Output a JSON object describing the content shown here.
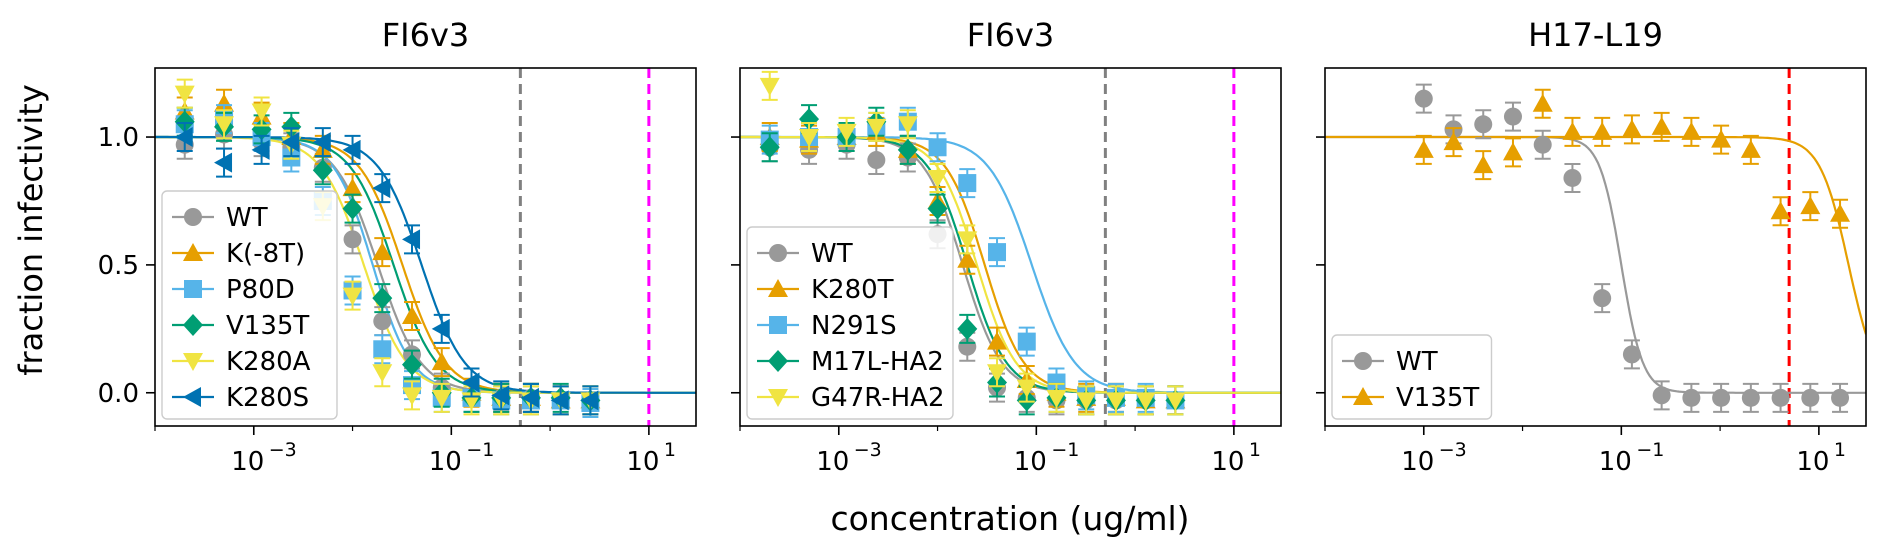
{
  "figure": {
    "ylabel": "fraction infectivity",
    "xlabel": "concentration (ug/ml)"
  },
  "chart_data": [
    {
      "type": "line",
      "title": "FI6v3",
      "xscale": "log",
      "xlim": [
        0.0001,
        30
      ],
      "ylim": [
        -0.13,
        1.27
      ],
      "xticks": [
        {
          "value": 0.001,
          "base": "10",
          "exp": "−3"
        },
        {
          "value": 0.1,
          "base": "10",
          "exp": "−1"
        },
        {
          "value": 10,
          "base": "10",
          "exp": "1"
        }
      ],
      "yticks": [
        {
          "value": 0,
          "label": "0.0"
        },
        {
          "value": 0.5,
          "label": "0.5"
        },
        {
          "value": 1,
          "label": "1.0"
        }
      ],
      "vlines": [
        {
          "x": 0.5,
          "color": "#808080"
        },
        {
          "x": 10,
          "color": "#ff00ff"
        }
      ],
      "legend": "lower-left",
      "series": [
        {
          "name": "WT",
          "color": "#999999",
          "marker": "circle",
          "ic50": 0.018,
          "hill": 2.0,
          "x": [
            0.0002,
            0.0005,
            0.0012,
            0.0024,
            0.005,
            0.01,
            0.02,
            0.04,
            0.08,
            0.16,
            0.32,
            0.64,
            1.28,
            2.56
          ],
          "y": [
            0.97,
            1.01,
            0.98,
            0.96,
            0.88,
            0.6,
            0.28,
            0.15,
            0.02,
            -0.02,
            -0.02,
            -0.02,
            -0.03,
            -0.03
          ]
        },
        {
          "name": "K(-8T)",
          "color": "#e69f00",
          "marker": "triangle-up",
          "ic50": 0.032,
          "hill": 2.0,
          "x": [
            0.0002,
            0.0005,
            0.0012,
            0.0024,
            0.005,
            0.01,
            0.02,
            0.04,
            0.08,
            0.16,
            0.32,
            0.64,
            1.28,
            2.56
          ],
          "y": [
            1.1,
            1.13,
            1.08,
            1.0,
            0.95,
            0.8,
            0.55,
            0.3,
            0.12,
            0.0,
            -0.02,
            -0.02,
            -0.03,
            -0.03
          ]
        },
        {
          "name": "P80D",
          "color": "#56b4e9",
          "marker": "square",
          "ic50": 0.016,
          "hill": 2.2,
          "x": [
            0.0002,
            0.0005,
            0.0012,
            0.0024,
            0.005,
            0.01,
            0.02,
            0.04,
            0.08,
            0.16,
            0.32,
            0.64,
            1.28,
            2.56
          ],
          "y": [
            1.05,
            1.07,
            1.0,
            0.92,
            0.75,
            0.4,
            0.17,
            0.03,
            -0.02,
            -0.02,
            -0.03,
            -0.03,
            -0.03,
            -0.04
          ]
        },
        {
          "name": "V135T",
          "color": "#009e73",
          "marker": "diamond",
          "ic50": 0.026,
          "hill": 2.0,
          "x": [
            0.0002,
            0.0005,
            0.0012,
            0.0024,
            0.005,
            0.01,
            0.02,
            0.04,
            0.08,
            0.16,
            0.32,
            0.64,
            1.28,
            2.56
          ],
          "y": [
            1.06,
            1.04,
            1.03,
            1.04,
            0.87,
            0.72,
            0.37,
            0.11,
            0.0,
            -0.02,
            -0.02,
            -0.02,
            -0.02,
            -0.03
          ]
        },
        {
          "name": "K280A",
          "color": "#f0e442",
          "marker": "triangle-down",
          "ic50": 0.013,
          "hill": 2.0,
          "x": [
            0.0002,
            0.0005,
            0.0012,
            0.0024,
            0.005,
            0.01,
            0.02,
            0.04,
            0.08,
            0.16,
            0.32,
            0.64,
            1.28,
            2.56
          ],
          "y": [
            1.17,
            1.05,
            1.1,
            0.97,
            0.73,
            0.38,
            0.08,
            -0.01,
            -0.02,
            -0.03,
            -0.03,
            -0.03,
            -0.03,
            -0.03
          ]
        },
        {
          "name": "K280S",
          "color": "#0072b2",
          "marker": "triangle-left",
          "ic50": 0.05,
          "hill": 2.0,
          "x": [
            0.0002,
            0.0005,
            0.0012,
            0.0024,
            0.005,
            0.01,
            0.02,
            0.04,
            0.08,
            0.16,
            0.32,
            0.64,
            1.28,
            2.56
          ],
          "y": [
            1.0,
            0.9,
            0.95,
            0.98,
            0.98,
            0.95,
            0.8,
            0.6,
            0.25,
            0.04,
            -0.01,
            -0.02,
            -0.03,
            -0.03
          ]
        }
      ]
    },
    {
      "type": "line",
      "title": "FI6v3",
      "xscale": "log",
      "xlim": [
        0.0001,
        30
      ],
      "ylim": [
        -0.13,
        1.27
      ],
      "xticks": [
        {
          "value": 0.001,
          "base": "10",
          "exp": "−3"
        },
        {
          "value": 0.1,
          "base": "10",
          "exp": "−1"
        },
        {
          "value": 10,
          "base": "10",
          "exp": "1"
        }
      ],
      "yticks": [
        {
          "value": 0,
          "label": ""
        },
        {
          "value": 0.5,
          "label": ""
        },
        {
          "value": 1,
          "label": ""
        }
      ],
      "vlines": [
        {
          "x": 0.5,
          "color": "#808080"
        },
        {
          "x": 10,
          "color": "#ff00ff"
        }
      ],
      "legend": "lower-left",
      "series": [
        {
          "name": "WT",
          "color": "#999999",
          "marker": "circle",
          "ic50": 0.018,
          "hill": 2.2,
          "x": [
            0.0002,
            0.0005,
            0.0012,
            0.0024,
            0.005,
            0.01,
            0.02,
            0.04,
            0.08,
            0.16,
            0.32,
            0.64,
            1.28,
            2.56
          ],
          "y": [
            0.96,
            0.95,
            0.97,
            0.91,
            0.92,
            0.62,
            0.18,
            0.02,
            -0.02,
            -0.03,
            -0.03,
            -0.03,
            -0.03,
            -0.03
          ]
        },
        {
          "name": "K280T",
          "color": "#e69f00",
          "marker": "triangle-up",
          "ic50": 0.03,
          "hill": 2.2,
          "x": [
            0.0002,
            0.0005,
            0.0012,
            0.0024,
            0.005,
            0.01,
            0.02,
            0.04,
            0.08,
            0.16,
            0.32,
            0.64,
            1.28,
            2.56
          ],
          "y": [
            1.0,
            0.99,
            1.0,
            1.02,
            0.95,
            0.75,
            0.52,
            0.2,
            0.05,
            0.0,
            -0.02,
            -0.02,
            -0.03,
            -0.03
          ]
        },
        {
          "name": "N291S",
          "color": "#56b4e9",
          "marker": "square",
          "ic50": 0.09,
          "hill": 2.0,
          "x": [
            0.0002,
            0.0005,
            0.0012,
            0.0024,
            0.005,
            0.01,
            0.02,
            0.04,
            0.08,
            0.16,
            0.32,
            0.64,
            1.28,
            2.56
          ],
          "y": [
            0.99,
            1.0,
            1.0,
            1.04,
            1.06,
            0.96,
            0.82,
            0.55,
            0.2,
            0.04,
            -0.01,
            -0.02,
            -0.02,
            -0.03
          ]
        },
        {
          "name": "M17L-HA2",
          "color": "#009e73",
          "marker": "diamond",
          "ic50": 0.02,
          "hill": 2.2,
          "x": [
            0.0002,
            0.0005,
            0.0012,
            0.0024,
            0.005,
            0.01,
            0.02,
            0.04,
            0.08,
            0.16,
            0.32,
            0.64,
            1.28,
            2.56
          ],
          "y": [
            0.96,
            1.07,
            1.0,
            1.06,
            0.95,
            0.72,
            0.25,
            0.04,
            -0.03,
            -0.02,
            -0.03,
            -0.03,
            -0.03,
            -0.03
          ]
        },
        {
          "name": "G47R-HA2",
          "color": "#f0e442",
          "marker": "triangle-down",
          "ic50": 0.025,
          "hill": 2.2,
          "x": [
            0.0002,
            0.0005,
            0.0012,
            0.0024,
            0.005,
            0.01,
            0.02,
            0.04,
            0.08,
            0.16,
            0.32,
            0.64,
            1.28,
            2.56
          ],
          "y": [
            1.2,
            1.0,
            1.02,
            1.04,
            1.05,
            0.84,
            0.6,
            0.08,
            0.02,
            -0.02,
            -0.03,
            -0.03,
            -0.03,
            -0.03
          ]
        }
      ]
    },
    {
      "type": "line",
      "title": "H17-L19",
      "xscale": "log",
      "xlim": [
        0.0001,
        30
      ],
      "ylim": [
        -0.13,
        1.27
      ],
      "xticks": [
        {
          "value": 0.001,
          "base": "10",
          "exp": "−3"
        },
        {
          "value": 0.1,
          "base": "10",
          "exp": "−1"
        },
        {
          "value": 10,
          "base": "10",
          "exp": "1"
        }
      ],
      "yticks": [
        {
          "value": 0,
          "label": ""
        },
        {
          "value": 0.5,
          "label": ""
        },
        {
          "value": 1,
          "label": ""
        }
      ],
      "vlines": [
        {
          "x": 5,
          "color": "#ff0000"
        }
      ],
      "legend": "lower-left",
      "series": [
        {
          "name": "WT",
          "color": "#999999",
          "marker": "circle",
          "ic50": 0.1,
          "hill": 4.0,
          "x": [
            0.001,
            0.002,
            0.004,
            0.008,
            0.016,
            0.032,
            0.064,
            0.128,
            0.256,
            0.512,
            1.024,
            2.048,
            4.096,
            8.192,
            16.38
          ],
          "y": [
            1.15,
            1.03,
            1.05,
            1.08,
            0.97,
            0.84,
            0.37,
            0.15,
            -0.01,
            -0.02,
            -0.02,
            -0.02,
            -0.02,
            -0.02,
            -0.02
          ]
        },
        {
          "name": "V135T",
          "color": "#e69f00",
          "marker": "triangle-up",
          "ic50": 20,
          "hill": 3.0,
          "x": [
            0.001,
            0.002,
            0.004,
            0.008,
            0.016,
            0.032,
            0.064,
            0.128,
            0.256,
            0.512,
            1.024,
            2.048,
            4.096,
            8.192,
            16.38
          ],
          "y": [
            0.95,
            0.98,
            0.89,
            0.94,
            1.13,
            1.02,
            1.02,
            1.03,
            1.04,
            1.02,
            0.99,
            0.95,
            0.71,
            0.73,
            0.7
          ]
        }
      ]
    }
  ]
}
